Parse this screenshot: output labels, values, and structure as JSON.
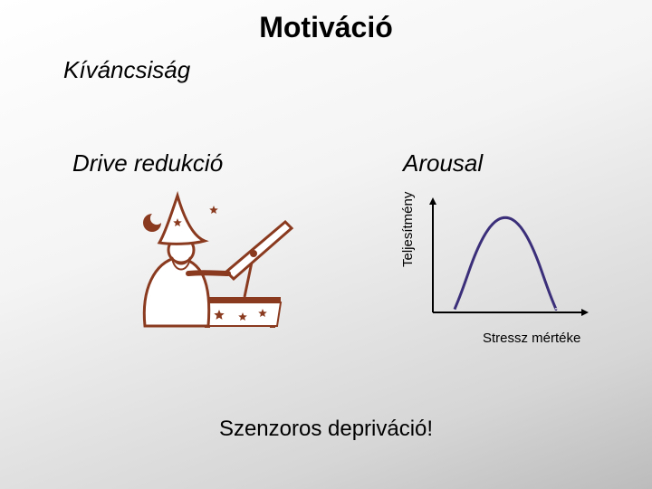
{
  "slide": {
    "title": "Motiváció",
    "subtitle": "Kíváncsiság",
    "left_heading": "Drive redukció",
    "right_heading": "Arousal",
    "bottom": "Szenzoros depriváció!",
    "background_gradient": [
      "#ffffff",
      "#f4f4f4",
      "#d6d6d6",
      "#bcbcbc"
    ]
  },
  "illustration": {
    "name": "wizard-telescope",
    "stroke_color": "#8a3a1f",
    "fill_color": "#ffffff",
    "star_color": "#8a3a1f"
  },
  "chart": {
    "type": "line",
    "curve": "inverted-u",
    "ylabel": "Teljesítmény",
    "xlabel": "Stressz mértéke",
    "line_color": "#3b2f7a",
    "line_width": 3,
    "axis_color": "#000000",
    "axis_width": 2,
    "background": "transparent",
    "xlim": [
      0,
      10
    ],
    "ylim": [
      0,
      10
    ],
    "points": [
      [
        1.5,
        0.3
      ],
      [
        2.0,
        2.0
      ],
      [
        3.0,
        6.0
      ],
      [
        4.0,
        8.5
      ],
      [
        5.0,
        9.3
      ],
      [
        6.0,
        8.5
      ],
      [
        7.0,
        6.0
      ],
      [
        8.0,
        2.0
      ],
      [
        8.5,
        0.3
      ]
    ]
  },
  "typography": {
    "title_fontsize": 32,
    "title_weight": "bold",
    "subtitle_fontsize": 26,
    "subtitle_style": "italic",
    "heading_fontsize": 26,
    "heading_style": "italic",
    "axis_label_fontsize": 15,
    "bottom_fontsize": 24,
    "font_family": "Arial"
  }
}
